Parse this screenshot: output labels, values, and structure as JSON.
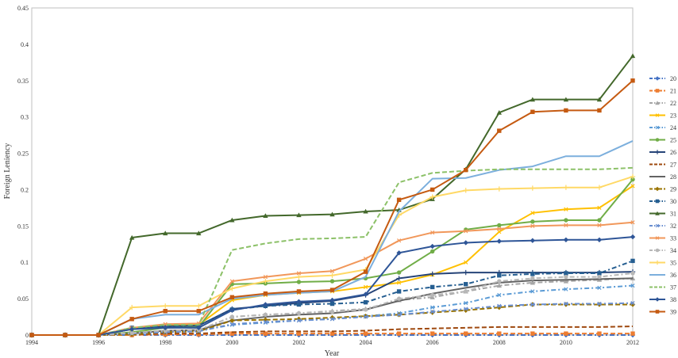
{
  "chart_data": {
    "type": "line",
    "title": "",
    "xlabel": "Year",
    "ylabel": "Foreign Leniency",
    "x": [
      1994,
      1995,
      1996,
      1997,
      1998,
      1999,
      2000,
      2001,
      2002,
      2003,
      2004,
      2005,
      2006,
      2007,
      2008,
      2009,
      2010,
      2011,
      2012
    ],
    "xlim": [
      1994,
      2012
    ],
    "ylim": [
      0,
      0.45
    ],
    "xticks": [
      "1994",
      "1996",
      "1998",
      "2000",
      "2002",
      "2004",
      "2006",
      "2008",
      "2010",
      "2012"
    ],
    "yticks": [
      "0",
      "0.05",
      "0.1",
      "0.15",
      "0.2",
      "0.25",
      "0.3",
      "0.35",
      "0.4",
      "0.45"
    ],
    "grid": false,
    "legend_position": "right",
    "series": [
      {
        "name": "20",
        "color": "#4472c4",
        "dash": "dashdot",
        "marker": "diamond",
        "values": [
          0,
          0,
          0,
          0,
          0,
          0,
          0,
          0,
          0,
          0,
          0,
          0,
          0,
          0,
          0,
          0,
          0,
          0,
          0
        ]
      },
      {
        "name": "21",
        "color": "#ed7d31",
        "dash": "dash",
        "marker": "square",
        "values": [
          0,
          0,
          0,
          0,
          0.001,
          0.001,
          0.002,
          0.002,
          0.002,
          0.002,
          0.002,
          0.002,
          0.002,
          0.002,
          0.002,
          0.002,
          0.002,
          0.002,
          0.002
        ]
      },
      {
        "name": "22",
        "color": "#a5a5a5",
        "dash": "dashdot",
        "marker": "triangle",
        "values": [
          0,
          0,
          0,
          0.003,
          0.006,
          0.007,
          0.025,
          0.028,
          0.03,
          0.033,
          0.036,
          0.048,
          0.052,
          0.06,
          0.068,
          0.072,
          0.074,
          0.076,
          0.078
        ]
      },
      {
        "name": "23",
        "color": "#ffc000",
        "dash": "solid",
        "marker": "x",
        "values": [
          0,
          0,
          0,
          0.008,
          0.013,
          0.014,
          0.048,
          0.055,
          0.058,
          0.06,
          0.066,
          0.072,
          0.083,
          0.1,
          0.142,
          0.168,
          0.173,
          0.175,
          0.205
        ]
      },
      {
        "name": "24",
        "color": "#5b9bd5",
        "dash": "dashdot",
        "marker": "x",
        "values": [
          0,
          0,
          0,
          0.002,
          0.005,
          0.006,
          0.014,
          0.017,
          0.02,
          0.022,
          0.026,
          0.03,
          0.038,
          0.044,
          0.055,
          0.06,
          0.063,
          0.065,
          0.068
        ]
      },
      {
        "name": "25",
        "color": "#70ad47",
        "dash": "solid",
        "marker": "circle",
        "values": [
          0,
          0,
          0,
          0.004,
          0.01,
          0.011,
          0.07,
          0.071,
          0.073,
          0.074,
          0.078,
          0.086,
          0.115,
          0.145,
          0.151,
          0.156,
          0.158,
          0.158,
          0.214
        ]
      },
      {
        "name": "26",
        "color": "#264478",
        "dash": "solid",
        "marker": "plus",
        "values": [
          0,
          0,
          0,
          0.008,
          0.012,
          0.013,
          0.036,
          0.04,
          0.044,
          0.047,
          0.055,
          0.078,
          0.084,
          0.086,
          0.086,
          0.086,
          0.086,
          0.086,
          0.087
        ]
      },
      {
        "name": "27",
        "color": "#9e480e",
        "dash": "dash",
        "marker": "none",
        "values": [
          0,
          0,
          0,
          0.001,
          0.002,
          0.002,
          0.004,
          0.005,
          0.005,
          0.005,
          0.006,
          0.008,
          0.009,
          0.01,
          0.011,
          0.011,
          0.011,
          0.011,
          0.012
        ]
      },
      {
        "name": "28",
        "color": "#636363",
        "dash": "solid",
        "marker": "none",
        "values": [
          0,
          0,
          0,
          0.002,
          0.006,
          0.007,
          0.02,
          0.025,
          0.028,
          0.03,
          0.035,
          0.047,
          0.057,
          0.065,
          0.072,
          0.075,
          0.076,
          0.077,
          0.078
        ]
      },
      {
        "name": "29",
        "color": "#997300",
        "dash": "dash",
        "marker": "diamond",
        "values": [
          0,
          0,
          0,
          0.001,
          0.004,
          0.005,
          0.02,
          0.021,
          0.022,
          0.024,
          0.026,
          0.028,
          0.031,
          0.034,
          0.038,
          0.042,
          0.042,
          0.042,
          0.042
        ]
      },
      {
        "name": "30",
        "color": "#255e91",
        "dash": "dashdot",
        "marker": "square",
        "values": [
          0,
          0,
          0,
          0.01,
          0.012,
          0.013,
          0.035,
          0.04,
          0.042,
          0.043,
          0.045,
          0.06,
          0.066,
          0.07,
          0.082,
          0.084,
          0.085,
          0.085,
          0.102
        ]
      },
      {
        "name": "31",
        "color": "#43682b",
        "dash": "solid",
        "marker": "triangle",
        "values": [
          0,
          0,
          0,
          0.134,
          0.14,
          0.14,
          0.158,
          0.164,
          0.165,
          0.166,
          0.17,
          0.172,
          0.187,
          0.228,
          0.306,
          0.324,
          0.324,
          0.324,
          0.384
        ]
      },
      {
        "name": "32",
        "color": "#698ed0",
        "dash": "dashdot",
        "marker": "x",
        "values": [
          0,
          0,
          0,
          0.002,
          0.004,
          0.005,
          0.015,
          0.018,
          0.02,
          0.022,
          0.025,
          0.028,
          0.032,
          0.036,
          0.04,
          0.042,
          0.043,
          0.043,
          0.044
        ]
      },
      {
        "name": "33",
        "color": "#f1975a",
        "dash": "solid",
        "marker": "x",
        "values": [
          0,
          0,
          0,
          0.01,
          0.015,
          0.016,
          0.074,
          0.08,
          0.085,
          0.088,
          0.105,
          0.13,
          0.141,
          0.143,
          0.146,
          0.15,
          0.151,
          0.151,
          0.155
        ]
      },
      {
        "name": "34",
        "color": "#b7b7b7",
        "dash": "dashdot",
        "marker": "circle",
        "values": [
          0,
          0,
          0,
          0.003,
          0.006,
          0.007,
          0.025,
          0.028,
          0.03,
          0.032,
          0.035,
          0.05,
          0.055,
          0.06,
          0.074,
          0.078,
          0.08,
          0.08,
          0.085
        ]
      },
      {
        "name": "35",
        "color": "#ffd966",
        "dash": "solid",
        "marker": "plus",
        "values": [
          0,
          0,
          0,
          0.038,
          0.04,
          0.04,
          0.064,
          0.074,
          0.08,
          0.082,
          0.09,
          0.165,
          0.19,
          0.199,
          0.201,
          0.202,
          0.203,
          0.203,
          0.218
        ]
      },
      {
        "name": "36",
        "color": "#7cafdd",
        "dash": "solid",
        "marker": "none",
        "values": [
          0,
          0,
          0,
          0.022,
          0.028,
          0.028,
          0.05,
          0.055,
          0.058,
          0.06,
          0.08,
          0.17,
          0.215,
          0.216,
          0.227,
          0.232,
          0.246,
          0.246,
          0.267
        ]
      },
      {
        "name": "37",
        "color": "#8cc168",
        "dash": "dash",
        "marker": "none",
        "values": [
          0,
          0,
          0,
          0.01,
          0.014,
          0.014,
          0.117,
          0.126,
          0.132,
          0.133,
          0.135,
          0.21,
          0.223,
          0.226,
          0.228,
          0.228,
          0.228,
          0.228,
          0.23
        ]
      },
      {
        "name": "38",
        "color": "#2e5597",
        "dash": "solid",
        "marker": "diamond",
        "values": [
          0,
          0,
          0,
          0.008,
          0.01,
          0.01,
          0.034,
          0.042,
          0.046,
          0.048,
          0.056,
          0.113,
          0.122,
          0.127,
          0.129,
          0.13,
          0.131,
          0.131,
          0.135
        ]
      },
      {
        "name": "39",
        "color": "#c55a11",
        "dash": "solid",
        "marker": "square",
        "values": [
          0,
          0,
          0,
          0.022,
          0.033,
          0.033,
          0.052,
          0.057,
          0.06,
          0.062,
          0.087,
          0.186,
          0.2,
          0.227,
          0.281,
          0.307,
          0.309,
          0.309,
          0.35
        ]
      }
    ]
  }
}
